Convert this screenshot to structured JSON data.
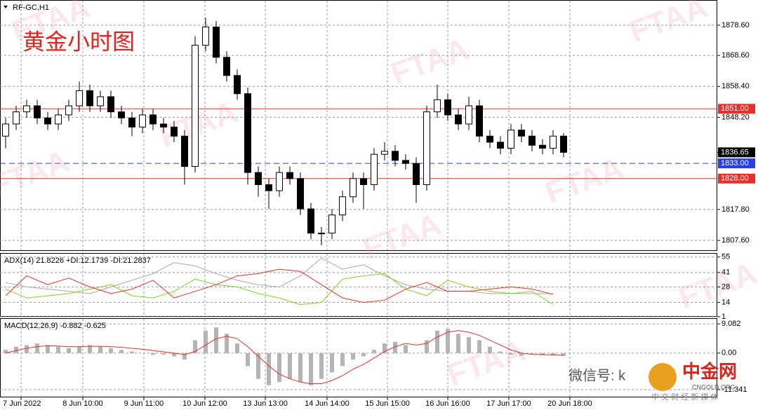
{
  "watermark": "FTAA",
  "wechat": "微信号: k",
  "brand": "中金网",
  "brand_sub": "CNGOLD.ORG",
  "tagline": "中 文 财 经 新 媒 体",
  "chart_data": [
    {
      "type": "candlestick",
      "title": "RF-GC,H1",
      "annotation": "黄金小时图",
      "up_color": "#ffffff",
      "down_color": "#000000",
      "open": [
        1842,
        1846,
        1850,
        1852,
        1848,
        1846,
        1849,
        1852,
        1857,
        1852,
        1855,
        1850,
        1848,
        1845,
        1849,
        1846,
        1845,
        1842,
        1832,
        1872,
        1878,
        1868,
        1862,
        1856,
        1830,
        1826,
        1824,
        1830,
        1828,
        1818,
        1810,
        1810,
        1816,
        1822,
        1828,
        1826,
        1836,
        1837,
        1834,
        1833,
        1826,
        1850,
        1854,
        1849,
        1846,
        1852,
        1842,
        1840,
        1838,
        1844,
        1842,
        1839,
        1838,
        1842
      ],
      "high": [
        1848,
        1852,
        1854,
        1854,
        1850,
        1851,
        1854,
        1860,
        1859,
        1857,
        1857,
        1852,
        1850,
        1851,
        1851,
        1848,
        1847,
        1844,
        1875,
        1881,
        1880,
        1870,
        1864,
        1858,
        1832,
        1828,
        1832,
        1832,
        1830,
        1820,
        1812,
        1818,
        1824,
        1830,
        1830,
        1838,
        1840,
        1839,
        1836,
        1835,
        1852,
        1859,
        1856,
        1851,
        1855,
        1854,
        1844,
        1842,
        1846,
        1846,
        1844,
        1841,
        1844,
        1843
      ],
      "low": [
        1838,
        1844,
        1848,
        1846,
        1844,
        1844,
        1847,
        1850,
        1850,
        1850,
        1848,
        1846,
        1842,
        1843,
        1844,
        1843,
        1840,
        1826,
        1830,
        1870,
        1866,
        1860,
        1854,
        1826,
        1822,
        1818,
        1822,
        1826,
        1816,
        1808,
        1806,
        1808,
        1814,
        1820,
        1818,
        1824,
        1834,
        1832,
        1831,
        1820,
        1824,
        1848,
        1847,
        1844,
        1844,
        1840,
        1838,
        1836,
        1836,
        1840,
        1837,
        1836,
        1836,
        1835
      ],
      "close": [
        1846,
        1850,
        1852,
        1848,
        1846,
        1849,
        1852,
        1857,
        1852,
        1855,
        1850,
        1848,
        1845,
        1849,
        1846,
        1845,
        1842,
        1832,
        1872,
        1878,
        1868,
        1862,
        1856,
        1830,
        1826,
        1824,
        1830,
        1828,
        1818,
        1810,
        1810,
        1816,
        1822,
        1828,
        1826,
        1836,
        1837,
        1834,
        1833,
        1826,
        1850,
        1854,
        1849,
        1846,
        1852,
        1842,
        1840,
        1838,
        1844,
        1842,
        1839,
        1838,
        1842,
        1836.65
      ],
      "xlim": [
        -0.533,
        67.6
      ],
      "xticks": [
        {
          "value": 1.47,
          "label": "7 Jun 2022"
        },
        {
          "value": 7.33,
          "label": "8 Jun 10:00"
        },
        {
          "value": 13.13,
          "label": "9 Jun 11:00"
        },
        {
          "value": 18.93,
          "label": "10 Jun 12:00"
        },
        {
          "value": 24.67,
          "label": "13 Jun 13:00"
        },
        {
          "value": 30.53,
          "label": "14 Jun 14:00"
        },
        {
          "value": 36.27,
          "label": "15 Jun 15:00"
        },
        {
          "value": 42.0,
          "label": "16 Jun 16:00"
        },
        {
          "value": 47.8,
          "label": "17 Jun 17:00"
        },
        {
          "value": 53.6,
          "label": "20 Jun 18:00"
        }
      ],
      "ylim": [
        1804.37,
        1886.67
      ],
      "yticks": [
        {
          "value": 1878.6,
          "label": "1878.60"
        },
        {
          "value": 1868.6,
          "label": "1868.60"
        },
        {
          "value": 1858.4,
          "label": "1858.40"
        },
        {
          "value": 1848.2,
          "label": "1848.20"
        },
        {
          "value": 1817.8,
          "label": "1817.80"
        },
        {
          "value": 1807.6,
          "label": "1807.60"
        }
      ],
      "levels": [
        {
          "value": 1851,
          "label": "1851.00",
          "color": "#e8302a",
          "dashed": false
        },
        {
          "value": 1833,
          "label": "1833.00",
          "color": "#2a3ee8",
          "dashed": true
        },
        {
          "value": 1828,
          "label": "1828.00",
          "color": "#e8302a",
          "dashed": false
        }
      ],
      "last_price": {
        "value": 1836.65,
        "label": "1836.65"
      }
    },
    {
      "type": "line",
      "title": "ADX(14) 21.8226 +DI:12.1739 -DI:21.2837",
      "x": [
        0,
        2,
        4,
        6,
        8,
        10,
        12,
        14,
        16,
        18,
        20,
        22,
        24,
        26,
        28,
        30,
        32,
        34,
        36,
        38,
        40,
        42,
        44,
        46,
        48,
        50,
        52
      ],
      "xlim": [
        -0.533,
        67.6
      ],
      "ylim": [
        1,
        58
      ],
      "yticks": [
        55,
        41,
        28,
        14,
        1
      ],
      "series": [
        {
          "color": "#a8a8a8",
          "values": [
            32,
            28,
            26,
            24,
            22,
            28,
            34,
            40,
            50,
            47,
            40,
            34,
            30,
            28,
            38,
            54,
            44,
            48,
            38,
            30,
            26,
            24,
            24,
            22,
            22,
            22,
            21.8
          ]
        },
        {
          "color": "#7ed321",
          "values": [
            26,
            18,
            20,
            22,
            26,
            30,
            20,
            18,
            24,
            35,
            30,
            28,
            22,
            18,
            12,
            14,
            35,
            38,
            40,
            26,
            20,
            34,
            28,
            24,
            22,
            24,
            12.2
          ]
        },
        {
          "color": "#e8302a",
          "values": [
            20,
            38,
            30,
            36,
            28,
            22,
            26,
            34,
            18,
            24,
            30,
            38,
            40,
            44,
            42,
            30,
            18,
            14,
            16,
            26,
            32,
            24,
            24,
            26,
            28,
            26,
            21.3
          ]
        }
      ]
    },
    {
      "type": "macd",
      "title": "MACD(12,26,9) -0.882 -0.625",
      "xlim": [
        -0.533,
        67.6
      ],
      "ylim": [
        -13.75,
        10.63
      ],
      "yticks": [
        9.082,
        {
          "value": 0,
          "label": "0.00"
        },
        -11.341
      ],
      "series": [
        {
          "kind": "bar",
          "color": "#b4b4b4",
          "values": [
            1,
            2,
            2.5,
            3,
            2.5,
            2,
            1.5,
            2,
            2.5,
            2,
            1.5,
            1,
            0.5,
            0,
            -0.5,
            -0.5,
            -1,
            -2,
            4,
            7,
            8,
            6,
            3,
            -4,
            -8,
            -10,
            -9,
            -8,
            -9,
            -10,
            -8,
            -6,
            -4,
            -2,
            -1,
            1,
            3,
            3.5,
            2.5,
            0,
            4,
            7,
            7.5,
            6,
            5,
            4,
            2,
            0.5,
            -0.5,
            -0.8,
            -0.3,
            -0.6,
            -0.5,
            -0.882
          ]
        },
        {
          "kind": "line",
          "color": "#e8302a",
          "values": [
            0,
            0.8,
            1.5,
            2,
            2.3,
            2.2,
            2,
            2,
            2.1,
            2.1,
            2,
            1.8,
            1.5,
            1.2,
            0.8,
            0.4,
            0,
            -0.5,
            0.5,
            2.5,
            4.5,
            5.2,
            4.5,
            2,
            -1,
            -4,
            -6.5,
            -8,
            -9,
            -9.5,
            -9.5,
            -8.5,
            -7,
            -5,
            -3.5,
            -1.5,
            0.5,
            2,
            3,
            2.5,
            3,
            5,
            6.5,
            7,
            6.5,
            5.5,
            4,
            2.5,
            1,
            0,
            -0.4,
            -0.5,
            -0.55,
            -0.625
          ]
        }
      ]
    }
  ]
}
